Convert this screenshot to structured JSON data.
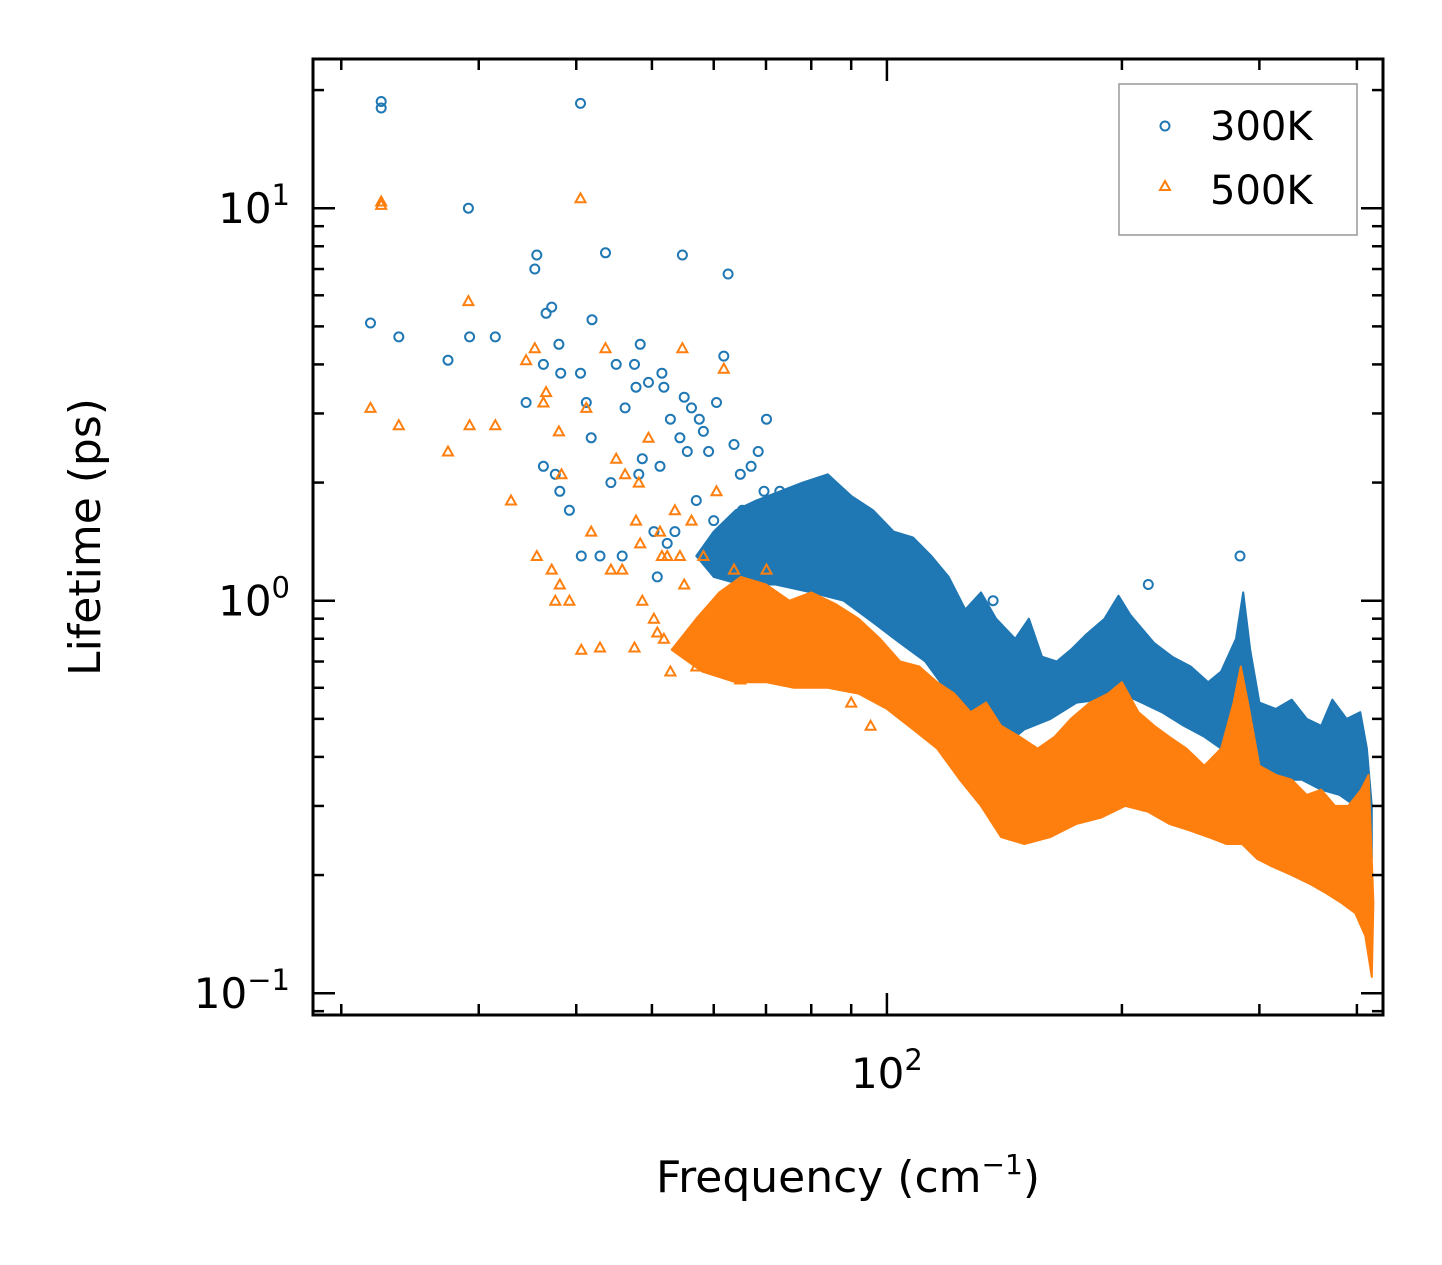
{
  "chart_data": {
    "type": "scatter",
    "title": "",
    "xlabel": "Frequency (cm",
    "xlabel_sup": "−1",
    "xlabel_close": ")",
    "ylabel": "Lifetime (ps)",
    "xscale": "log",
    "yscale": "log",
    "xlim": [
      18.4,
      432
    ],
    "ylim": [
      0.088,
      24
    ],
    "x_ticks": [
      {
        "value": 100,
        "base": "10",
        "exp": "2"
      }
    ],
    "y_ticks": [
      {
        "value": 0.1,
        "base": "10",
        "exp": "−1"
      },
      {
        "value": 1,
        "base": "10",
        "exp": "0"
      },
      {
        "value": 10,
        "base": "10",
        "exp": "1"
      }
    ],
    "legend_position": "top-right",
    "series": [
      {
        "name": "300K",
        "marker": "circle",
        "color": "#1f77b4",
        "x": [
          21.8,
          22.5,
          22.5,
          23.7,
          27.4,
          29.1,
          29.2,
          31.5,
          34.5,
          35.4,
          35.6,
          36.3,
          36.3,
          36.6,
          37.2,
          37.6,
          38.0,
          38.1,
          38.2,
          39.2,
          40.5,
          40.5,
          40.6,
          41.2,
          41.8,
          41.9,
          42.9,
          43.6,
          44.3,
          45.0,
          45.8,
          46.2,
          47.5,
          47.7,
          48.1,
          48.3,
          48.6,
          49.5,
          50.3,
          50.8,
          51.2,
          51.5,
          51.8,
          52.3,
          52.8,
          53.5,
          54.3,
          54.7,
          55.0,
          55.5,
          56.2,
          57.0,
          57.5,
          58.2,
          59.1,
          60.0,
          60.5,
          61.8,
          62.6,
          63.7,
          64.9,
          65.3,
          66.0,
          67.0,
          68.4,
          69.6,
          70.1,
          72.9,
          74.2,
          75.5,
          77.2,
          80.6,
          86.1,
          136.8,
          216.2,
          226.6,
          258.6,
          283.3
        ],
        "y": [
          5.1,
          18.0,
          18.7,
          4.7,
          4.1,
          10.0,
          4.7,
          4.7,
          3.2,
          7.0,
          7.6,
          2.2,
          4.0,
          5.4,
          5.6,
          2.1,
          4.5,
          1.9,
          3.8,
          1.7,
          18.5,
          3.8,
          1.3,
          3.2,
          2.6,
          5.2,
          1.3,
          7.7,
          2.0,
          4.0,
          1.3,
          3.1,
          4.0,
          3.5,
          2.1,
          4.5,
          2.3,
          3.6,
          1.5,
          1.15,
          2.2,
          3.8,
          3.5,
          1.4,
          2.9,
          1.5,
          2.6,
          7.6,
          3.3,
          2.4,
          3.1,
          1.8,
          2.9,
          2.7,
          2.4,
          1.6,
          3.2,
          4.2,
          6.8,
          2.5,
          2.1,
          1.7,
          1.6,
          2.2,
          2.4,
          1.9,
          2.9,
          1.9,
          1.8,
          1.6,
          1.5,
          1.6,
          1.7,
          1.0,
          1.1,
          0.7,
          0.6,
          1.3
        ]
      },
      {
        "name": "500K",
        "marker": "triangle",
        "color": "#ff7f0e",
        "x": [
          21.8,
          22.5,
          22.5,
          23.7,
          27.4,
          29.1,
          29.2,
          31.5,
          33.0,
          34.5,
          35.4,
          35.6,
          36.3,
          36.6,
          37.2,
          37.6,
          38.0,
          38.1,
          38.3,
          39.2,
          40.5,
          40.6,
          41.2,
          41.8,
          42.9,
          43.6,
          44.3,
          45.0,
          45.8,
          46.2,
          47.5,
          47.7,
          48.1,
          48.3,
          48.6,
          49.5,
          50.3,
          50.8,
          51.2,
          51.5,
          51.8,
          52.3,
          52.8,
          53.5,
          54.3,
          54.7,
          55.0,
          56.2,
          57.0,
          58.2,
          59.1,
          60.5,
          61.8,
          62.6,
          63.7,
          64.9,
          66.0,
          68.4,
          70.1,
          72.9,
          74.2,
          77.2,
          80.6,
          86.1,
          90.0,
          95.3,
          99.0
        ],
        "y": [
          3.1,
          10.2,
          10.4,
          2.8,
          2.4,
          5.8,
          2.8,
          2.8,
          1.8,
          4.1,
          4.4,
          1.3,
          3.2,
          3.4,
          1.2,
          1.0,
          2.7,
          1.1,
          2.1,
          1.0,
          10.6,
          0.75,
          3.1,
          1.5,
          0.76,
          4.4,
          1.2,
          2.3,
          1.2,
          2.1,
          0.76,
          1.6,
          2.0,
          1.4,
          1.0,
          2.6,
          0.9,
          0.83,
          1.5,
          1.3,
          0.8,
          1.3,
          0.66,
          1.7,
          1.3,
          4.4,
          1.1,
          1.6,
          0.68,
          1.3,
          0.82,
          1.9,
          3.9,
          1.0,
          1.2,
          0.63,
          1.1,
          0.82,
          1.2,
          0.79,
          0.77,
          0.72,
          0.66,
          0.62,
          0.55,
          0.48,
          0.56
        ]
      }
    ],
    "bands": [
      {
        "name": "300K",
        "points": [
          [
            57,
            1.3
          ],
          [
            60,
            1.5
          ],
          [
            64,
            1.7
          ],
          [
            68,
            1.8
          ],
          [
            73,
            1.9
          ],
          [
            78,
            2.0
          ],
          [
            84,
            2.1
          ],
          [
            90,
            1.85
          ],
          [
            96,
            1.7
          ],
          [
            102,
            1.5
          ],
          [
            108,
            1.45
          ],
          [
            114,
            1.3
          ],
          [
            120,
            1.15
          ],
          [
            126,
            0.95
          ],
          [
            132,
            1.05
          ],
          [
            138,
            0.9
          ],
          [
            146,
            0.8
          ],
          [
            152,
            0.9
          ],
          [
            158,
            0.72
          ],
          [
            165,
            0.7
          ],
          [
            172,
            0.75
          ],
          [
            180,
            0.82
          ],
          [
            190,
            0.9
          ],
          [
            198,
            1.03
          ],
          [
            205,
            0.92
          ],
          [
            212,
            0.85
          ],
          [
            220,
            0.78
          ],
          [
            232,
            0.72
          ],
          [
            245,
            0.68
          ],
          [
            258,
            0.62
          ],
          [
            268,
            0.66
          ],
          [
            280,
            0.8
          ],
          [
            286,
            1.05
          ],
          [
            292,
            0.75
          ],
          [
            300,
            0.55
          ],
          [
            315,
            0.53
          ],
          [
            330,
            0.56
          ],
          [
            345,
            0.5
          ],
          [
            360,
            0.48
          ],
          [
            372,
            0.56
          ],
          [
            388,
            0.5
          ],
          [
            404,
            0.52
          ],
          [
            412,
            0.42
          ],
          [
            418,
            0.3
          ],
          [
            418,
            0.22
          ],
          [
            410,
            0.25
          ],
          [
            398,
            0.3
          ],
          [
            380,
            0.32
          ],
          [
            360,
            0.33
          ],
          [
            340,
            0.35
          ],
          [
            318,
            0.35
          ],
          [
            300,
            0.38
          ],
          [
            290,
            0.4
          ],
          [
            280,
            0.45
          ],
          [
            268,
            0.42
          ],
          [
            255,
            0.45
          ],
          [
            240,
            0.48
          ],
          [
            225,
            0.52
          ],
          [
            212,
            0.55
          ],
          [
            200,
            0.58
          ],
          [
            188,
            0.56
          ],
          [
            175,
            0.55
          ],
          [
            162,
            0.5
          ],
          [
            150,
            0.47
          ],
          [
            140,
            0.42
          ],
          [
            130,
            0.47
          ],
          [
            120,
            0.58
          ],
          [
            112,
            0.7
          ],
          [
            104,
            0.78
          ],
          [
            96,
            0.88
          ],
          [
            88,
            1.0
          ],
          [
            80,
            1.05
          ],
          [
            72,
            1.1
          ],
          [
            65,
            1.1
          ],
          [
            60,
            1.15
          ]
        ]
      },
      {
        "name": "500K",
        "points": [
          [
            53,
            0.75
          ],
          [
            57,
            0.9
          ],
          [
            61,
            1.05
          ],
          [
            65,
            1.15
          ],
          [
            70,
            1.1
          ],
          [
            75,
            1.0
          ],
          [
            80,
            1.05
          ],
          [
            86,
            0.98
          ],
          [
            92,
            0.9
          ],
          [
            98,
            0.8
          ],
          [
            104,
            0.7
          ],
          [
            110,
            0.68
          ],
          [
            116,
            0.62
          ],
          [
            122,
            0.58
          ],
          [
            128,
            0.52
          ],
          [
            134,
            0.55
          ],
          [
            140,
            0.48
          ],
          [
            148,
            0.45
          ],
          [
            156,
            0.42
          ],
          [
            164,
            0.45
          ],
          [
            172,
            0.5
          ],
          [
            182,
            0.55
          ],
          [
            192,
            0.58
          ],
          [
            200,
            0.62
          ],
          [
            210,
            0.52
          ],
          [
            220,
            0.48
          ],
          [
            230,
            0.45
          ],
          [
            242,
            0.42
          ],
          [
            255,
            0.38
          ],
          [
            268,
            0.42
          ],
          [
            278,
            0.55
          ],
          [
            284,
            0.68
          ],
          [
            290,
            0.55
          ],
          [
            300,
            0.38
          ],
          [
            315,
            0.36
          ],
          [
            330,
            0.35
          ],
          [
            345,
            0.32
          ],
          [
            360,
            0.33
          ],
          [
            375,
            0.3
          ],
          [
            390,
            0.3
          ],
          [
            405,
            0.33
          ],
          [
            414,
            0.36
          ],
          [
            420,
            0.17
          ],
          [
            418,
            0.11
          ],
          [
            410,
            0.14
          ],
          [
            398,
            0.16
          ],
          [
            382,
            0.17
          ],
          [
            365,
            0.18
          ],
          [
            348,
            0.19
          ],
          [
            330,
            0.2
          ],
          [
            312,
            0.21
          ],
          [
            298,
            0.22
          ],
          [
            285,
            0.24
          ],
          [
            272,
            0.24
          ],
          [
            258,
            0.25
          ],
          [
            244,
            0.26
          ],
          [
            230,
            0.27
          ],
          [
            216,
            0.29
          ],
          [
            202,
            0.3
          ],
          [
            188,
            0.28
          ],
          [
            175,
            0.27
          ],
          [
            162,
            0.25
          ],
          [
            150,
            0.24
          ],
          [
            140,
            0.25
          ],
          [
            132,
            0.3
          ],
          [
            124,
            0.35
          ],
          [
            116,
            0.42
          ],
          [
            108,
            0.47
          ],
          [
            100,
            0.53
          ],
          [
            92,
            0.58
          ],
          [
            84,
            0.6
          ],
          [
            76,
            0.6
          ],
          [
            70,
            0.62
          ],
          [
            64,
            0.62
          ],
          [
            58,
            0.66
          ]
        ]
      }
    ]
  }
}
